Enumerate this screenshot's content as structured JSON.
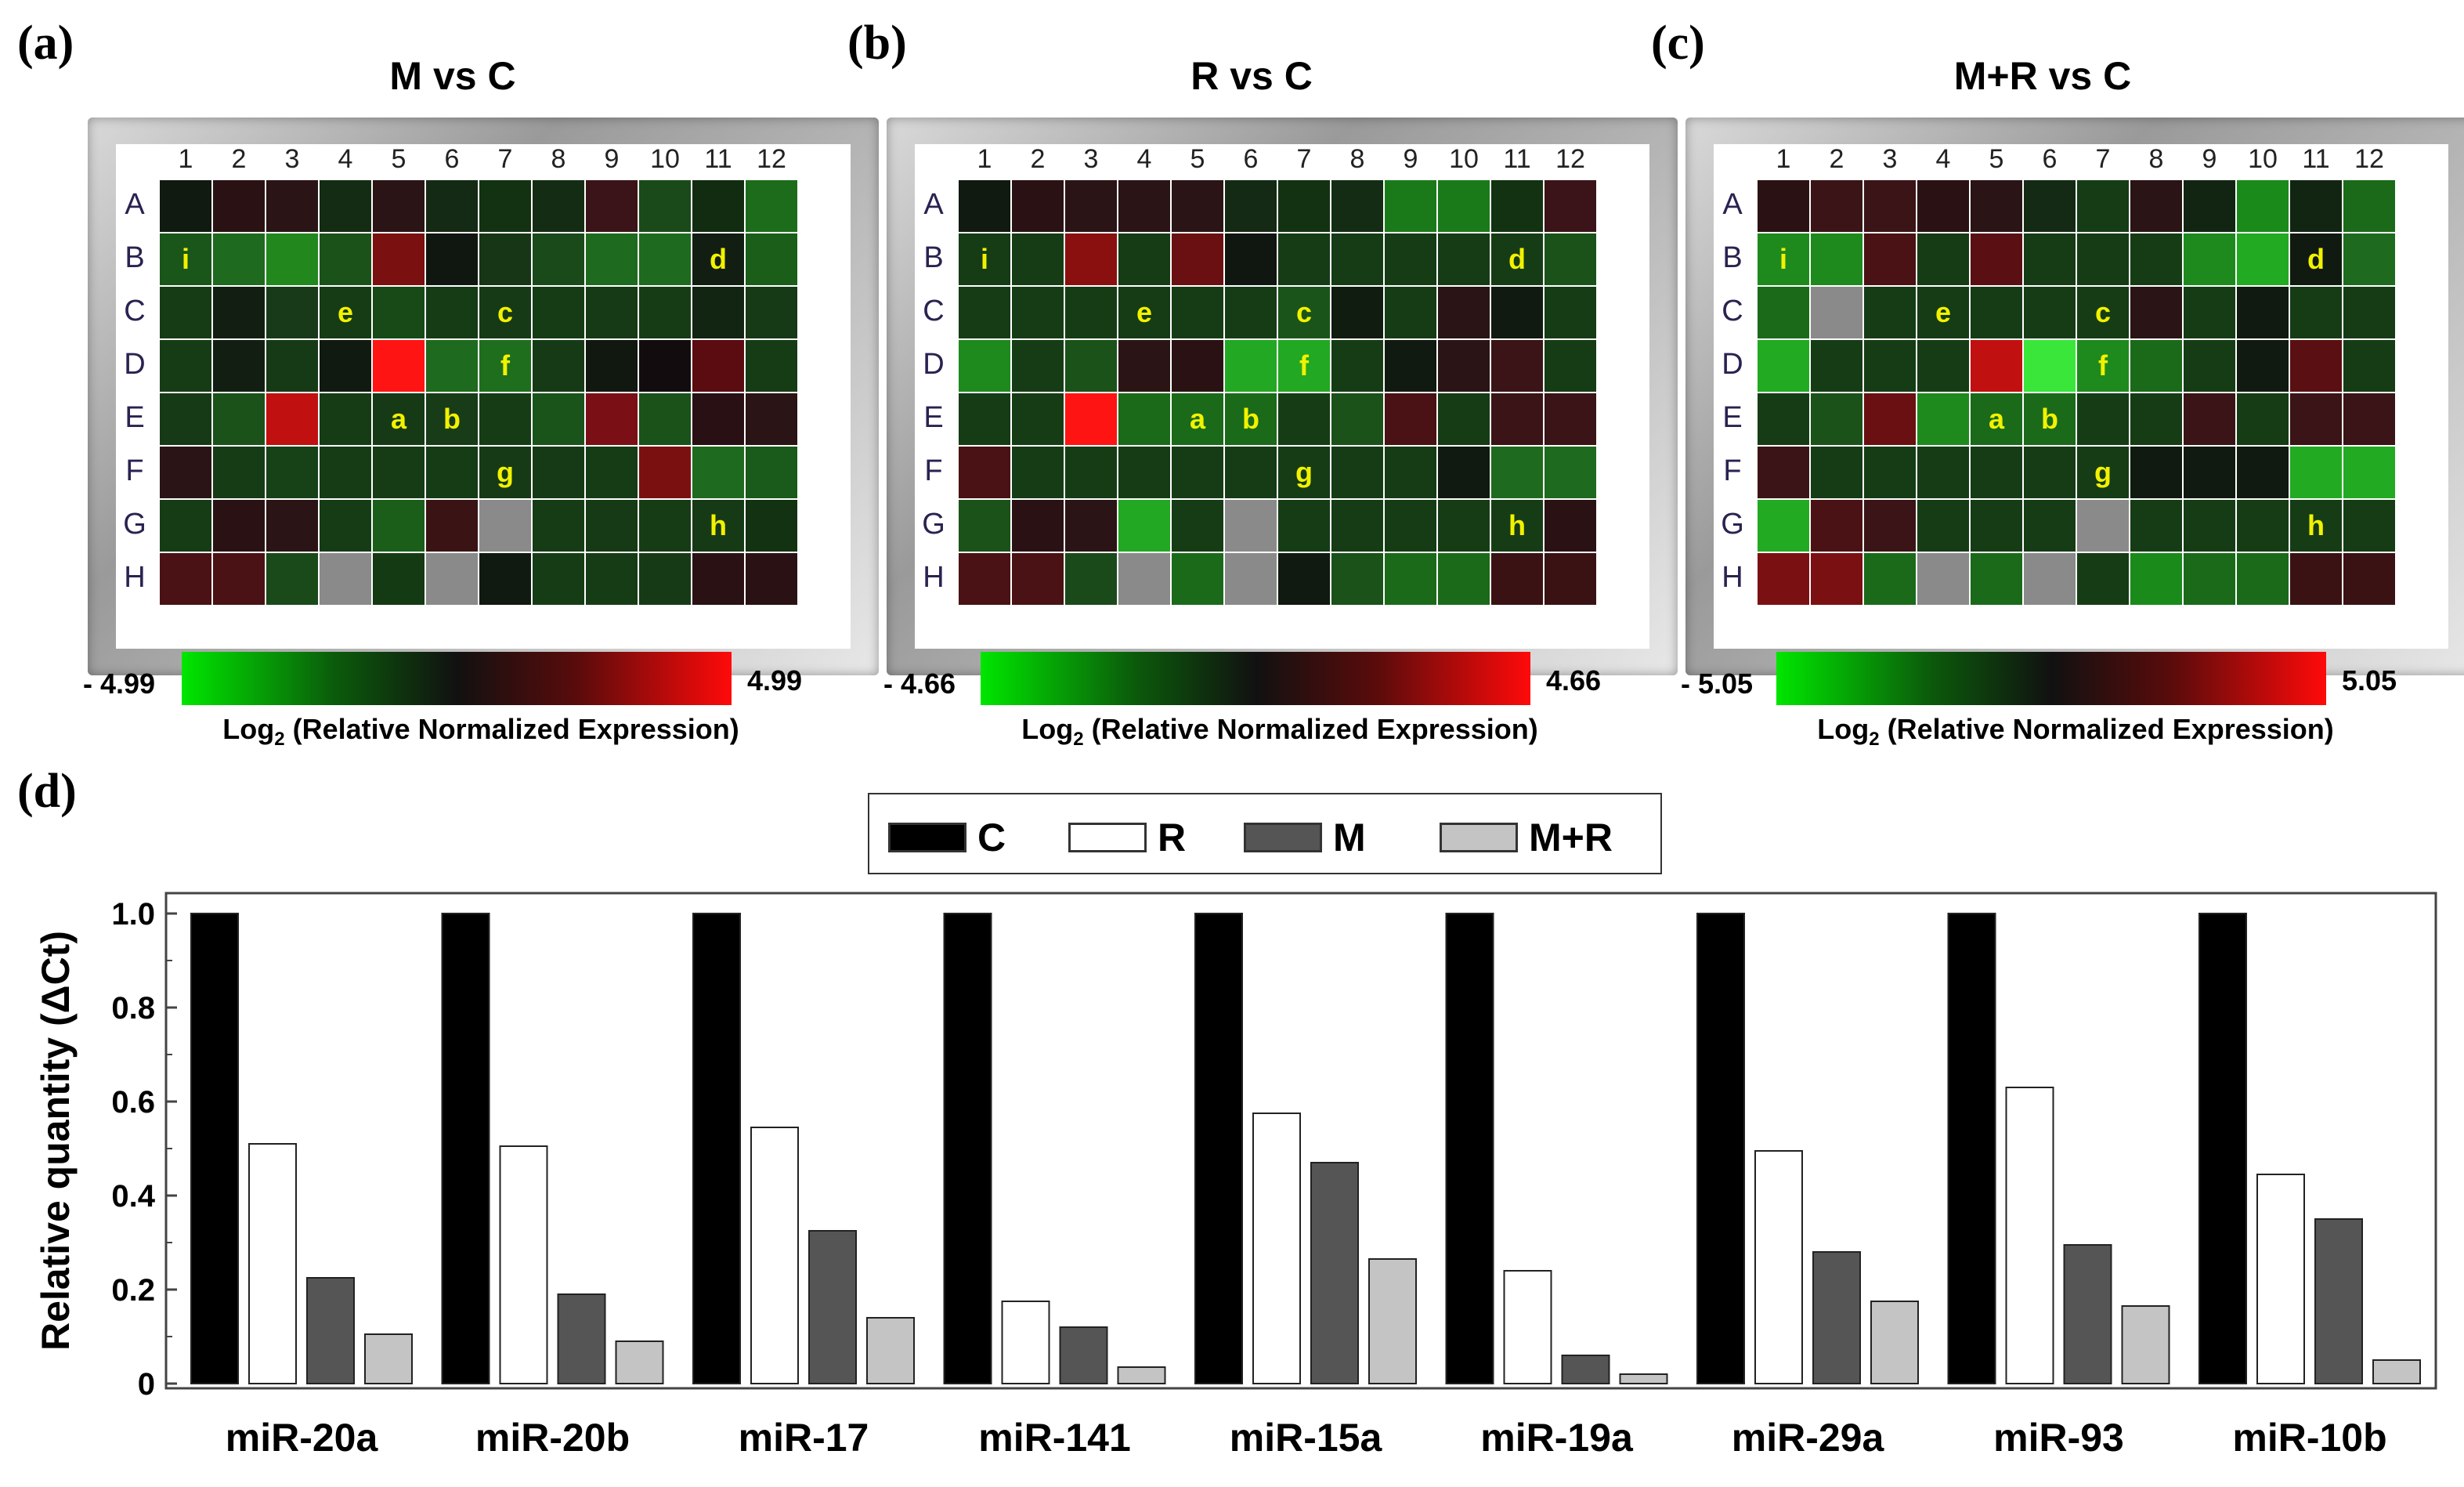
{
  "heatmaps": [
    {
      "letter": "(a)",
      "title": "M vs C",
      "scale_min": "- 4.99",
      "scale_max": "4.99",
      "caption_main": "Log",
      "caption_sub": "2",
      "caption_rest": " (Relative Normalized Expression)",
      "columns": [
        "1",
        "2",
        "3",
        "4",
        "5",
        "6",
        "7",
        "8",
        "9",
        "10",
        "11",
        "12"
      ],
      "rows": [
        "A",
        "B",
        "C",
        "D",
        "E",
        "F",
        "G",
        "H"
      ],
      "cells": [
        [
          "#101a10",
          "#2a1214",
          "#2a1416",
          "#142c14",
          "#2a1416",
          "#142a14",
          "#123212",
          "#142c14",
          "#3a1418",
          "#1a4a1a",
          "#122c12",
          "#1c6c1c"
        ],
        [
          "#1a561a",
          "#1e6a1e",
          "#22881e",
          "#1a521a",
          "#7a1010",
          "#101610",
          "#163616",
          "#1a4a1a",
          "#1e6a1e",
          "#1e6a1e",
          "#121e12",
          "#1a5e1a"
        ],
        [
          "#163c16",
          "#121e12",
          "#183a18",
          "#163c16",
          "#174a17",
          "#163c16",
          "#163a16",
          "#163c16",
          "#163a16",
          "#163c16",
          "#122412",
          "#163a16"
        ],
        [
          "#163c16",
          "#121e12",
          "#163a16",
          "#101a10",
          "#ff1414",
          "#1e6a1e",
          "#1e6e1e",
          "#163a16",
          "#101810",
          "#120c0e",
          "#5a0c10",
          "#163c16"
        ],
        [
          "#163a16",
          "#1a521a",
          "#c01010",
          "#163c16",
          "#163a16",
          "#183c18",
          "#163c16",
          "#1a541a",
          "#7a1016",
          "#1a521a",
          "#281014",
          "#2a1416"
        ],
        [
          "#2a1416",
          "#163c16",
          "#174217",
          "#163c16",
          "#163c16",
          "#163c16",
          "#163a16",
          "#163a16",
          "#163c16",
          "#7a1010",
          "#1e6a1e",
          "#1a5a1a"
        ],
        [
          "#163c16",
          "#2a1214",
          "#2a1416",
          "#163c16",
          "#1a5e1a",
          "#3a1414",
          "#8a8a8a",
          "#163c16",
          "#163a16",
          "#163c16",
          "#163a16",
          "#123212"
        ],
        [
          "#4a1214",
          "#4a1214",
          "#1a4a1a",
          "#8a8a8a",
          "#143a14",
          "#8a8a8a",
          "#101a10",
          "#163c16",
          "#163c16",
          "#163a16",
          "#2a1214",
          "#2a1214"
        ]
      ],
      "marks": [
        [
          "B",
          "1",
          "i"
        ],
        [
          "B",
          "11",
          "d"
        ],
        [
          "C",
          "4",
          "e"
        ],
        [
          "C",
          "7",
          "c"
        ],
        [
          "D",
          "7",
          "f"
        ],
        [
          "E",
          "5",
          "a"
        ],
        [
          "E",
          "6",
          "b"
        ],
        [
          "F",
          "7",
          "g"
        ],
        [
          "G",
          "11",
          "h"
        ]
      ]
    },
    {
      "letter": "(b)",
      "title": "R vs C",
      "scale_min": "- 4.66",
      "scale_max": "4.66",
      "caption_main": "Log",
      "caption_sub": "2",
      "caption_rest": " (Relative Normalized Expression)",
      "columns": [
        "1",
        "2",
        "3",
        "4",
        "5",
        "6",
        "7",
        "8",
        "9",
        "10",
        "11",
        "12"
      ],
      "rows": [
        "A",
        "B",
        "C",
        "D",
        "E",
        "F",
        "G",
        "H"
      ],
      "cells": [
        [
          "#101a10",
          "#2a1214",
          "#2a1416",
          "#2a1416",
          "#2a1416",
          "#142a14",
          "#123212",
          "#142c14",
          "#1a7a1a",
          "#1a7a1a",
          "#123212",
          "#3a1418"
        ],
        [
          "#163c16",
          "#163c16",
          "#8a1010",
          "#163c16",
          "#6a1012",
          "#101610",
          "#163c16",
          "#163c16",
          "#163c16",
          "#163c16",
          "#163c16",
          "#1a521a"
        ],
        [
          "#163c16",
          "#163c16",
          "#163c16",
          "#163c16",
          "#163c16",
          "#163c16",
          "#1a541a",
          "#101c10",
          "#163c16",
          "#2a1416",
          "#101a10",
          "#163c16"
        ],
        [
          "#1e8a1e",
          "#163c16",
          "#1a521a",
          "#2a1416",
          "#2a1214",
          "#22a822",
          "#22a822",
          "#163c16",
          "#101a10",
          "#2a1416",
          "#3a1416",
          "#163c16"
        ],
        [
          "#163c16",
          "#163c16",
          "#ff1414",
          "#1a6a1a",
          "#1a6a1a",
          "#1a6a1a",
          "#163c16",
          "#1a521a",
          "#4a1214",
          "#163c16",
          "#3a1416",
          "#3a1416"
        ],
        [
          "#4a1214",
          "#163c16",
          "#163c16",
          "#163c16",
          "#163c16",
          "#163c16",
          "#163c16",
          "#163c16",
          "#163c16",
          "#101a10",
          "#1e6a1e",
          "#1e6a1e"
        ],
        [
          "#1a521a",
          "#2a1214",
          "#2a1416",
          "#22a822",
          "#163c16",
          "#8a8a8a",
          "#163c16",
          "#163c16",
          "#163c16",
          "#163c16",
          "#163c16",
          "#2a1214"
        ],
        [
          "#4a1214",
          "#4a1214",
          "#1a4a1a",
          "#8a8a8a",
          "#1a6a1a",
          "#8a8a8a",
          "#101a10",
          "#1a521a",
          "#1a6a1a",
          "#1a6a1a",
          "#3a1214",
          "#3a1214"
        ]
      ],
      "marks": [
        [
          "B",
          "1",
          "i"
        ],
        [
          "B",
          "11",
          "d"
        ],
        [
          "C",
          "4",
          "e"
        ],
        [
          "C",
          "7",
          "c"
        ],
        [
          "D",
          "7",
          "f"
        ],
        [
          "E",
          "5",
          "a"
        ],
        [
          "E",
          "6",
          "b"
        ],
        [
          "F",
          "7",
          "g"
        ],
        [
          "G",
          "11",
          "h"
        ]
      ]
    },
    {
      "letter": "(c)",
      "title": "M+R vs C",
      "scale_min": "- 5.05",
      "scale_max": "5.05",
      "caption_main": "Log",
      "caption_sub": "2",
      "caption_rest": " (Relative Normalized Expression)",
      "columns": [
        "1",
        "2",
        "3",
        "4",
        "5",
        "6",
        "7",
        "8",
        "9",
        "10",
        "11",
        "12"
      ],
      "rows": [
        "A",
        "B",
        "C",
        "D",
        "E",
        "F",
        "G",
        "H"
      ],
      "cells": [
        [
          "#2a1214",
          "#3a1416",
          "#3a1416",
          "#2a1214",
          "#2a1416",
          "#142a14",
          "#163c16",
          "#2a1416",
          "#122412",
          "#1a8a1a",
          "#122412",
          "#1a6a1a"
        ],
        [
          "#1e8a1e",
          "#1e8a1e",
          "#4a1214",
          "#163c16",
          "#5a1012",
          "#163c16",
          "#163c16",
          "#163c16",
          "#1e8a1e",
          "#22aa22",
          "#101a10",
          "#1e6a1e"
        ],
        [
          "#1a6a1a",
          "#8a8a8a",
          "#163c16",
          "#163c16",
          "#163c16",
          "#163c16",
          "#163c16",
          "#2a1416",
          "#163c16",
          "#101a10",
          "#163c16",
          "#163c16"
        ],
        [
          "#22aa22",
          "#163c16",
          "#163c16",
          "#163c16",
          "#c01010",
          "#3ae63a",
          "#1e8a1e",
          "#1a6a1a",
          "#163c16",
          "#101a10",
          "#5a1012",
          "#163c16"
        ],
        [
          "#163c16",
          "#1a521a",
          "#6a1012",
          "#1e8a1e",
          "#1a6a1a",
          "#1a6a1a",
          "#163c16",
          "#163c16",
          "#3a1416",
          "#163c16",
          "#3a1416",
          "#3a1416"
        ],
        [
          "#3a1416",
          "#163c16",
          "#163c16",
          "#163c16",
          "#163c16",
          "#163c16",
          "#163c16",
          "#101a10",
          "#101a10",
          "#101a10",
          "#22aa22",
          "#22aa22"
        ],
        [
          "#22aa22",
          "#4a1214",
          "#3a1416",
          "#163c16",
          "#163c16",
          "#163c16",
          "#8a8a8a",
          "#163c16",
          "#163c16",
          "#163c16",
          "#163c16",
          "#163c16"
        ],
        [
          "#7a1012",
          "#7a1012",
          "#1a6a1a",
          "#8a8a8a",
          "#1a6a1a",
          "#8a8a8a",
          "#163c16",
          "#1a8a1a",
          "#1a6a1a",
          "#1a6a1a",
          "#3a1214",
          "#3a1214"
        ]
      ],
      "marks": [
        [
          "B",
          "1",
          "i"
        ],
        [
          "B",
          "11",
          "d"
        ],
        [
          "C",
          "4",
          "e"
        ],
        [
          "C",
          "7",
          "c"
        ],
        [
          "D",
          "7",
          "f"
        ],
        [
          "E",
          "5",
          "a"
        ],
        [
          "E",
          "6",
          "b"
        ],
        [
          "F",
          "7",
          "g"
        ],
        [
          "G",
          "11",
          "h"
        ]
      ]
    }
  ],
  "bar_panel": {
    "letter": "(d)"
  },
  "chart_data": {
    "type": "bar",
    "categories": [
      "miR-20a",
      "miR-20b",
      "miR-17",
      "miR-141",
      "miR-15a",
      "miR-19a",
      "miR-29a",
      "miR-93",
      "miR-10b"
    ],
    "series": [
      {
        "name": "C",
        "color": "#000000",
        "values": [
          1.0,
          1.0,
          1.0,
          1.0,
          1.0,
          1.0,
          1.0,
          1.0,
          1.0
        ]
      },
      {
        "name": "R",
        "color": "#ffffff",
        "values": [
          0.51,
          0.505,
          0.545,
          0.175,
          0.575,
          0.24,
          0.495,
          0.63,
          0.445
        ]
      },
      {
        "name": "M",
        "color": "#555555",
        "values": [
          0.225,
          0.19,
          0.325,
          0.12,
          0.47,
          0.06,
          0.28,
          0.295,
          0.35
        ]
      },
      {
        "name": "M+R",
        "color": "#c4c4c4",
        "values": [
          0.105,
          0.09,
          0.14,
          0.035,
          0.265,
          0.02,
          0.175,
          0.165,
          0.05
        ]
      }
    ],
    "ylabel": "Relative quantity (ΔCt)",
    "xlabel": "",
    "ylim": [
      0,
      1.0
    ],
    "yticks": [
      "0",
      "0.2",
      "0.4",
      "0.6",
      "0.8",
      "1.0"
    ],
    "legend_position": "top-center",
    "grid": false
  }
}
